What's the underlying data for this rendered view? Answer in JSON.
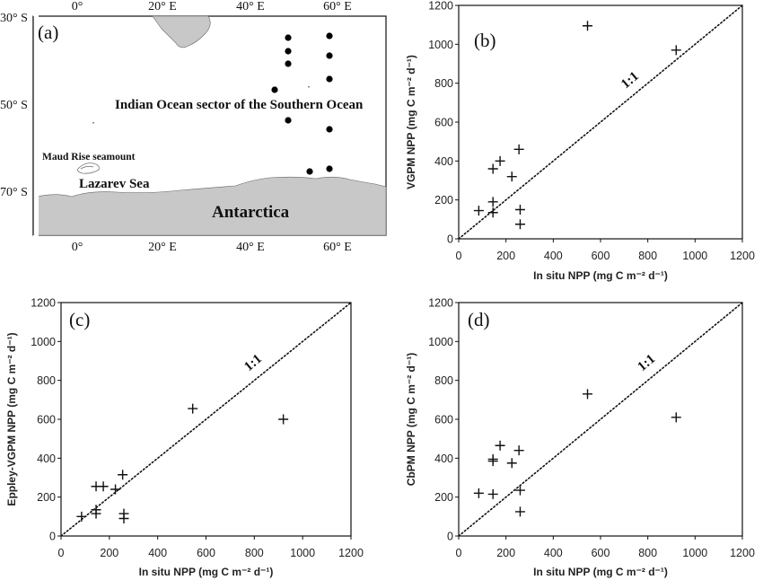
{
  "map_panel": {
    "label": "(a)",
    "top_ticks": [
      "0°",
      "20° E",
      "40° E",
      "60° E"
    ],
    "bottom_ticks": [
      "0°",
      "20° E",
      "40° E",
      "60° E"
    ],
    "lat_ticks": [
      "30° S",
      "50° S",
      "70° S"
    ],
    "region_label": "Indian Ocean sector of the Southern Ocean",
    "seamount_label": "Maud Rise seamount",
    "sea_label": "Lazarev Sea",
    "continent_label": "Antarctica",
    "colors": {
      "land": "#c8c8c8",
      "stations": "#000000"
    }
  },
  "chart_data": [
    {
      "panel": "(b)",
      "type": "scatter",
      "xlabel": "In situ NPP (mg C m⁻² d⁻¹)",
      "ylabel": "VGPM NPP (mg C m⁻² d⁻¹)",
      "xlim": [
        0,
        1200
      ],
      "ylim": [
        0,
        1200
      ],
      "xticks": [
        0,
        200,
        400,
        600,
        800,
        1000,
        1200
      ],
      "yticks": [
        0,
        200,
        400,
        600,
        800,
        1000,
        1200
      ],
      "one_to_one_label": "1:1",
      "points": [
        {
          "x": 85,
          "y": 145
        },
        {
          "x": 145,
          "y": 135
        },
        {
          "x": 145,
          "y": 190
        },
        {
          "x": 145,
          "y": 360
        },
        {
          "x": 175,
          "y": 400
        },
        {
          "x": 225,
          "y": 320
        },
        {
          "x": 255,
          "y": 460
        },
        {
          "x": 260,
          "y": 150
        },
        {
          "x": 260,
          "y": 75
        },
        {
          "x": 545,
          "y": 1095
        },
        {
          "x": 920,
          "y": 970
        }
      ]
    },
    {
      "panel": "(c)",
      "type": "scatter",
      "xlabel": "In situ NPP (mg C m⁻² d⁻¹)",
      "ylabel": "Eppley-VGPM NPP (mg C m⁻² d⁻¹)",
      "xlim": [
        0,
        1200
      ],
      "ylim": [
        0,
        1200
      ],
      "xticks": [
        0,
        200,
        400,
        600,
        800,
        1000,
        1200
      ],
      "yticks": [
        0,
        200,
        400,
        600,
        800,
        1000,
        1200
      ],
      "one_to_one_label": "1:1",
      "points": [
        {
          "x": 85,
          "y": 100
        },
        {
          "x": 145,
          "y": 115
        },
        {
          "x": 145,
          "y": 135
        },
        {
          "x": 145,
          "y": 255
        },
        {
          "x": 175,
          "y": 255
        },
        {
          "x": 225,
          "y": 240
        },
        {
          "x": 255,
          "y": 315
        },
        {
          "x": 260,
          "y": 115
        },
        {
          "x": 260,
          "y": 90
        },
        {
          "x": 545,
          "y": 655
        },
        {
          "x": 920,
          "y": 600
        }
      ]
    },
    {
      "panel": "(d)",
      "type": "scatter",
      "xlabel": "In situ NPP (mg C m⁻² d⁻¹)",
      "ylabel": "CbPM NPP (mg C m⁻² d⁻¹)",
      "xlim": [
        0,
        1200
      ],
      "ylim": [
        0,
        1200
      ],
      "xticks": [
        0,
        200,
        400,
        600,
        800,
        1000,
        1200
      ],
      "yticks": [
        0,
        200,
        400,
        600,
        800,
        1000,
        1200
      ],
      "one_to_one_label": "1:1",
      "points": [
        {
          "x": 85,
          "y": 220
        },
        {
          "x": 145,
          "y": 215
        },
        {
          "x": 145,
          "y": 385
        },
        {
          "x": 145,
          "y": 395
        },
        {
          "x": 175,
          "y": 465
        },
        {
          "x": 225,
          "y": 375
        },
        {
          "x": 255,
          "y": 440
        },
        {
          "x": 260,
          "y": 235
        },
        {
          "x": 260,
          "y": 125
        },
        {
          "x": 545,
          "y": 730
        },
        {
          "x": 920,
          "y": 610
        }
      ]
    }
  ]
}
